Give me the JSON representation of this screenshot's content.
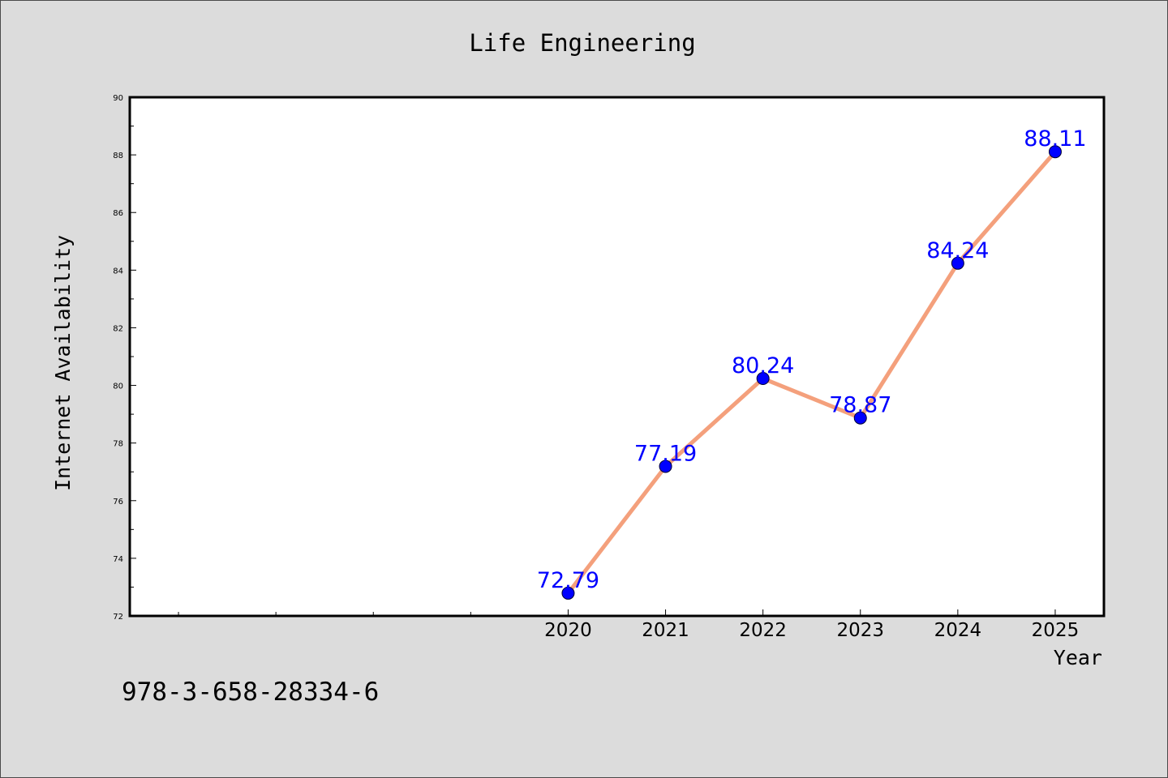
{
  "footer_text": "978-3-658-28334-6",
  "chart_data": {
    "type": "line",
    "title": "Life Engineering",
    "xlabel": "Year",
    "ylabel": "Internet Availability",
    "x": [
      2020,
      2021,
      2022,
      2023,
      2024,
      2025
    ],
    "x_tick_labels": [
      "2020",
      "2021",
      "2022",
      "2023",
      "2024",
      "2025"
    ],
    "values": [
      72.79,
      77.19,
      80.24,
      78.87,
      84.24,
      88.11
    ],
    "data_labels": [
      "72.79",
      "77.19",
      "80.24",
      "78.87",
      "84.24",
      "88.11"
    ],
    "xlim": [
      2015.5,
      2025.5
    ],
    "ylim": [
      72,
      90
    ],
    "y_ticks": [
      72,
      74,
      76,
      78,
      80,
      82,
      84,
      86,
      88,
      90
    ],
    "y_tick_labels": [
      "72",
      "74",
      "76",
      "78",
      "80",
      "82",
      "84",
      "86",
      "88",
      "90"
    ],
    "grid": false,
    "colors": {
      "line": "#f4a07c",
      "marker": "#0000ff",
      "data_label": "#0000ff",
      "plot_background": "#ffffff",
      "figure_background": "#dcdcdc",
      "axes_edge": "#000000"
    }
  }
}
